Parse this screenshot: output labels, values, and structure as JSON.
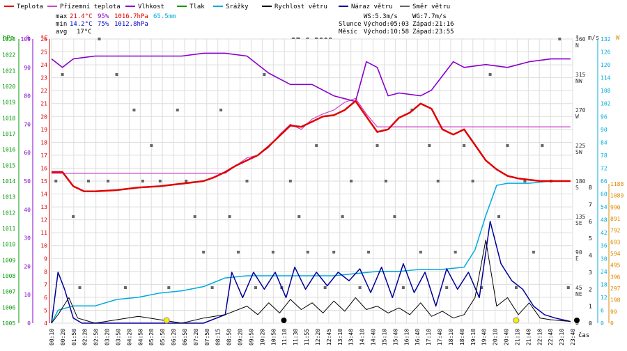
{
  "legend": [
    {
      "label": "Teplota",
      "color": "#e00000"
    },
    {
      "label": "Přízemní teplota",
      "color": "#cc44cc"
    },
    {
      "label": "Vlhkost",
      "color": "#8800cc"
    },
    {
      "label": "Tlak",
      "color": "#009900"
    },
    {
      "label": "Srážky",
      "color": "#00aadd"
    },
    {
      "label": "Rychlost větru",
      "color": "#000000"
    },
    {
      "label": "Náraz větru",
      "color": "#000099"
    },
    {
      "label": "Směr větru",
      "color": "#666666"
    }
  ],
  "stats": {
    "max_label": "max",
    "max_temp": "21.4°C",
    "max_hum": "95%",
    "max_press": "1016.7hPa",
    "max_rain": "65.5mm",
    "min_label": "min",
    "min_temp": "14.2°C",
    "min_hum": "75%",
    "min_press": "1012.8hPa",
    "avg_label": "avg",
    "avg_temp": "17°C"
  },
  "wind": {
    "ws": "WS:5.3m/s",
    "wg": "WG:7.7m/s"
  },
  "sun": {
    "label": "Slunce",
    "rise": "Východ:05:03",
    "set": "Západ:21:16"
  },
  "moon": {
    "label": "Měsíc",
    "rise": "Východ:10:58",
    "set": "Západ:23:55"
  },
  "date": "27.6.2009",
  "unit_labels": {
    "hpa": "hPa",
    "pct": "%",
    "temp": "°C",
    "deg": "°",
    "ms": "m/s",
    "w": "W",
    "time": "čas"
  },
  "colors": {
    "temp": "#e00000",
    "ground": "#cc44cc",
    "hum": "#8800cc",
    "press": "#009900",
    "rain": "#00aadd",
    "speed": "#000000",
    "gust": "#000099",
    "dir": "#666666",
    "solar": "#dd8800",
    "grid": "#dddddd"
  },
  "chart_data": {
    "type": "line",
    "x_ticks": [
      "00:10",
      "00:20",
      "01:50",
      "02:20",
      "02:50",
      "03:20",
      "03:50",
      "04:20",
      "04:50",
      "05:20",
      "05:50",
      "06:20",
      "06:50",
      "07:20",
      "07:50",
      "08:15",
      "08:50",
      "09:20",
      "09:50",
      "10:20",
      "10:50",
      "11:10",
      "11:30",
      "11:55",
      "12:20",
      "12:45",
      "13:10",
      "13:40",
      "14:10",
      "14:40",
      "15:10",
      "15:40",
      "16:10",
      "16:40",
      "17:10",
      "17:40",
      "18:10",
      "18:40",
      "19:10",
      "19:40",
      "20:10",
      "20:40",
      "21:10",
      "21:40",
      "22:10",
      "22:40",
      "23:10",
      "23:40"
    ],
    "axes": {
      "pressure_hpa": {
        "min": 1005,
        "max": 1023,
        "ticks": [
          1005,
          1006,
          1007,
          1008,
          1009,
          1010,
          1011,
          1012,
          1013,
          1014,
          1015,
          1016,
          1017,
          1018,
          1019,
          1020,
          1021,
          1022,
          1023
        ]
      },
      "humidity_pct": {
        "min": 0,
        "max": 100,
        "ticks": [
          0,
          10,
          20,
          30,
          40,
          50,
          60,
          70,
          80,
          90,
          100
        ]
      },
      "temperature_c": {
        "min": 4,
        "max": 26,
        "ticks": [
          4,
          5,
          6,
          7,
          8,
          9,
          10,
          11,
          12,
          13,
          14,
          15,
          16,
          17,
          18,
          19,
          20,
          21,
          22,
          23,
          24,
          25,
          26
        ]
      },
      "direction_deg": {
        "ticks": [
          "0",
          "45 NE",
          "90 E",
          "135 SE",
          "180 S",
          "225 SW",
          "270 W",
          "315 NW",
          "360 N"
        ]
      },
      "speed_ms": {
        "min": 0,
        "max": 8,
        "ticks": [
          0,
          1,
          2,
          3,
          4,
          5,
          6,
          7,
          8
        ]
      },
      "rain_right": {
        "ticks": [
          0,
          6,
          12,
          18,
          24,
          30,
          36,
          42,
          48,
          54,
          60,
          66,
          72,
          78,
          84,
          90,
          96,
          102,
          108,
          114,
          120,
          126,
          132
        ]
      },
      "solar_w": {
        "ticks": [
          0,
          99,
          198,
          297,
          396,
          495,
          594,
          693,
          792,
          891,
          990,
          1089,
          1188
        ]
      }
    },
    "series": [
      {
        "name": "Teplota",
        "unit": "°C",
        "x": [
          0,
          0.5,
          1.0,
          1.5,
          2,
          3,
          4,
          5,
          6,
          7,
          7.5,
          8,
          8.5,
          9,
          9.5,
          10,
          10.5,
          11,
          11.5,
          12,
          12.5,
          13,
          13.5,
          14,
          14.5,
          15,
          15.5,
          16,
          16.5,
          17,
          17.5,
          18,
          18.5,
          19,
          19.5,
          20,
          20.5,
          21,
          21.5,
          22,
          22.5,
          23,
          23.9
        ],
        "y": [
          15.7,
          15.7,
          14.6,
          14.2,
          14.2,
          14.3,
          14.5,
          14.6,
          14.8,
          15.0,
          15.3,
          15.7,
          16.2,
          16.6,
          17.0,
          17.7,
          18.5,
          19.3,
          19.2,
          19.6,
          20.0,
          20.1,
          20.5,
          21.2,
          20.0,
          18.8,
          19.0,
          19.9,
          20.3,
          21.0,
          20.6,
          19.0,
          18.6,
          19.0,
          17.8,
          16.6,
          15.9,
          15.4,
          15.2,
          15.1,
          15.0,
          15.0,
          15.0
        ]
      },
      {
        "name": "Přízemní teplota",
        "unit": "°C",
        "x": [
          0,
          8,
          8.5,
          9,
          9.5,
          10,
          10.5,
          11,
          11.5,
          12,
          12.5,
          13,
          13.5,
          14,
          14.5,
          15,
          16,
          23.9
        ],
        "y": [
          15.6,
          15.6,
          16.2,
          16.8,
          17.0,
          17.6,
          18.6,
          19.4,
          19.0,
          19.8,
          20.2,
          20.5,
          21.1,
          21.4,
          20.2,
          19.2,
          19.2,
          19.2
        ]
      },
      {
        "name": "Vlhkost",
        "unit": "%",
        "x": [
          0,
          0.5,
          1,
          2,
          3,
          4,
          5,
          6,
          7,
          8,
          9,
          10,
          11,
          12,
          13,
          13.5,
          14,
          14.5,
          15,
          15.5,
          16,
          17,
          17.5,
          18,
          18.5,
          19,
          20,
          21,
          22,
          23,
          23.9
        ],
        "y": [
          93,
          90,
          93,
          94,
          94,
          94,
          94,
          94,
          95,
          95,
          94,
          88,
          84,
          84,
          80,
          79,
          78,
          92,
          90,
          80,
          81,
          80,
          82,
          87,
          92,
          90,
          91,
          90,
          92,
          93,
          93
        ]
      },
      {
        "name": "Srážky",
        "unit": "right",
        "x": [
          0,
          0.3,
          1,
          2,
          3,
          4,
          5,
          6,
          7,
          8,
          9,
          10,
          11,
          12,
          13,
          14,
          15,
          16,
          17,
          18,
          19,
          19.5,
          20,
          20.5,
          21,
          22,
          23,
          23.9
        ],
        "y": [
          0,
          6,
          8,
          8,
          11,
          12,
          14,
          15,
          17,
          21,
          22,
          22,
          22,
          22,
          22,
          23,
          24,
          24,
          25,
          25,
          26,
          34,
          50,
          64,
          65,
          65,
          66,
          66
        ]
      },
      {
        "name": "Rychlost větru",
        "unit": "m/s",
        "x": [
          0,
          0.3,
          0.8,
          1.2,
          2,
          3,
          4,
          5,
          6,
          7,
          8,
          9,
          9.5,
          10,
          10.5,
          11,
          11.5,
          12,
          12.5,
          13,
          13.5,
          14,
          14.5,
          15,
          15.5,
          16,
          16.5,
          17,
          17.5,
          18,
          18.5,
          19,
          19.5,
          20,
          20.5,
          21,
          21.5,
          22,
          22.5,
          23,
          23.9
        ],
        "y": [
          0,
          0.5,
          1.5,
          0.3,
          0,
          0.2,
          0.4,
          0.2,
          0,
          0.3,
          0.5,
          1.0,
          0.5,
          1.2,
          0.6,
          1.4,
          0.8,
          1.2,
          0.6,
          1.3,
          0.7,
          1.5,
          0.8,
          1.0,
          0.6,
          0.9,
          0.5,
          1.2,
          0.4,
          0.7,
          0.3,
          0.5,
          1.5,
          4.9,
          1.0,
          1.5,
          0.5,
          1.2,
          0.3,
          0.2,
          0.1
        ]
      },
      {
        "name": "Náraz větru",
        "unit": "m/s",
        "x": [
          0,
          0.3,
          0.6,
          1.0,
          1.4,
          2,
          3,
          4,
          5,
          6,
          7,
          8,
          8.3,
          8.8,
          9.3,
          9.8,
          10.3,
          10.8,
          11.2,
          11.7,
          12.2,
          12.7,
          13.2,
          13.7,
          14.2,
          14.7,
          15.2,
          15.7,
          16.2,
          16.7,
          17.2,
          17.7,
          18.2,
          18.7,
          19.2,
          19.7,
          20.2,
          20.7,
          21.2,
          21.7,
          22.2,
          22.7,
          23.2,
          23.9
        ],
        "y": [
          0,
          3,
          2,
          0.3,
          0,
          0,
          0,
          0,
          0,
          0,
          0,
          0.5,
          3,
          1.5,
          3,
          2,
          3,
          1.5,
          3.3,
          2,
          3,
          2.2,
          3,
          2.5,
          3.2,
          1.8,
          3.3,
          1.5,
          3.5,
          1.8,
          3,
          1,
          3.2,
          2,
          3,
          1.5,
          6,
          3.5,
          2.5,
          2,
          1,
          0.5,
          0.3,
          0.1
        ]
      },
      {
        "name": "Směr větru",
        "unit": "°",
        "type": "scatter",
        "x": [
          0.2,
          0.5,
          1,
          1.3,
          1.7,
          2.2,
          2.6,
          3,
          3.4,
          3.8,
          4.2,
          4.6,
          5,
          5.4,
          5.8,
          6.2,
          6.6,
          7,
          7.4,
          7.8,
          8.2,
          8.6,
          9,
          9.4,
          9.8,
          10.2,
          10.6,
          11,
          11.4,
          11.8,
          12.2,
          12.6,
          13,
          13.4,
          13.8,
          14.2,
          14.6,
          15,
          15.4,
          15.8,
          16.2,
          16.6,
          17,
          17.4,
          17.8,
          18.2,
          18.6,
          19,
          19.4,
          19.8,
          20.2,
          20.6,
          21,
          21.4,
          21.8,
          22.2,
          22.6,
          23,
          23.4,
          23.8
        ],
        "y": [
          180,
          315,
          135,
          45,
          180,
          360,
          180,
          315,
          45,
          270,
          180,
          225,
          180,
          45,
          270,
          180,
          135,
          90,
          45,
          270,
          135,
          90,
          180,
          45,
          315,
          90,
          45,
          180,
          135,
          90,
          225,
          45,
          90,
          135,
          180,
          45,
          90,
          225,
          180,
          135,
          45,
          270,
          90,
          225,
          180,
          45,
          90,
          225,
          180,
          45,
          315,
          135,
          225,
          45,
          180,
          90,
          225,
          180,
          360,
          45
        ]
      },
      {
        "name": "Sluneční záření",
        "unit": "W",
        "x": [
          5.3,
          10.7,
          21.4
        ],
        "y": [
          0,
          0,
          0
        ]
      }
    ]
  }
}
